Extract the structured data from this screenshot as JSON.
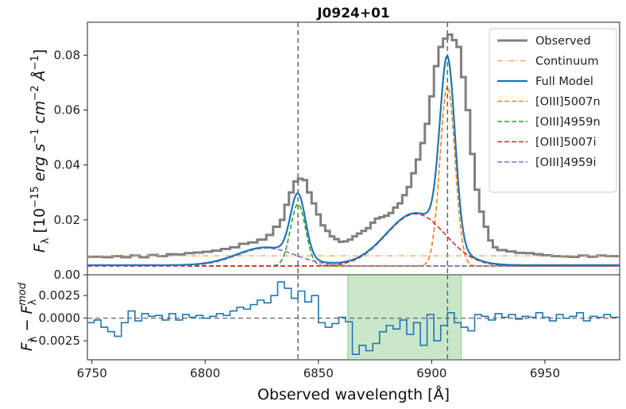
{
  "chart_data": {
    "type": "line",
    "title": "J0924+01",
    "xlabel": "Observed wavelength [Å]",
    "xlim": [
      6748,
      6983
    ],
    "xticks": [
      6750,
      6800,
      6850,
      6900,
      6950
    ],
    "top_panel": {
      "ylabel": "F_λ [10^-15 erg s^-1 cm^-2 Å^-1]",
      "ylim": [
        0.0,
        0.092
      ],
      "yticks": [
        "0.00",
        "0.02",
        "0.04",
        "0.06",
        "0.08"
      ],
      "yticks_values": [
        0.0,
        0.02,
        0.04,
        0.06,
        0.08
      ],
      "vlines": [
        6841,
        6907
      ],
      "legend_position": "upper-right",
      "observed_x": [
        6748,
        6751,
        6755,
        6759,
        6763,
        6767,
        6771,
        6775,
        6779,
        6783,
        6787,
        6791,
        6795,
        6799,
        6803,
        6807,
        6811,
        6815,
        6819,
        6823,
        6827,
        6830,
        6833,
        6835,
        6837,
        6839,
        6841,
        6843,
        6845,
        6847,
        6849,
        6851,
        6853,
        6855,
        6857,
        6859,
        6861,
        6863,
        6865,
        6867,
        6869,
        6871,
        6873,
        6875,
        6877,
        6879,
        6881,
        6883,
        6885,
        6887,
        6889,
        6891,
        6893,
        6895,
        6897,
        6899,
        6901,
        6903,
        6905,
        6907,
        6909,
        6911,
        6913,
        6915,
        6917,
        6919,
        6921,
        6923,
        6925,
        6927,
        6929,
        6933,
        6937,
        6941,
        6945,
        6949,
        6953,
        6957,
        6961,
        6965,
        6969,
        6973,
        6977,
        6983
      ],
      "observed_y": [
        0.0066,
        0.0066,
        0.0064,
        0.0068,
        0.0064,
        0.007,
        0.0064,
        0.0072,
        0.0068,
        0.0075,
        0.0074,
        0.0079,
        0.0081,
        0.0084,
        0.0088,
        0.0094,
        0.01,
        0.0113,
        0.0118,
        0.0128,
        0.0145,
        0.0175,
        0.02,
        0.0255,
        0.03,
        0.034,
        0.035,
        0.0345,
        0.03,
        0.026,
        0.022,
        0.018,
        0.016,
        0.014,
        0.013,
        0.012,
        0.0122,
        0.0128,
        0.014,
        0.015,
        0.016,
        0.017,
        0.019,
        0.0205,
        0.021,
        0.0215,
        0.0225,
        0.0245,
        0.026,
        0.029,
        0.032,
        0.037,
        0.042,
        0.048,
        0.055,
        0.065,
        0.076,
        0.083,
        0.086,
        0.0875,
        0.0855,
        0.083,
        0.072,
        0.06,
        0.044,
        0.031,
        0.023,
        0.0175,
        0.0125,
        0.01,
        0.009,
        0.0085,
        0.008,
        0.0079,
        0.0075,
        0.0071,
        0.0068,
        0.0067,
        0.0065,
        0.007,
        0.0066,
        0.007,
        0.0068,
        0.007
      ],
      "series": [
        {
          "name": "Observed",
          "color": "#7f7f7f",
          "style": "steps"
        },
        {
          "name": "Continuum",
          "color": "#e8a45e",
          "style": "dashdot",
          "value": 0.0069
        },
        {
          "name": "Full Model",
          "color": "#1f77b4",
          "style": "solid"
        },
        {
          "name": "[OIII]5007n",
          "color": "#ff7f0e",
          "style": "dashed",
          "amp": 0.0656,
          "center": 6907,
          "sigma": 3.3,
          "base": 0.0032
        },
        {
          "name": "[OIII]4959n",
          "color": "#2ca02c",
          "style": "dashed",
          "amp": 0.0226,
          "center": 6841,
          "sigma": 3.3,
          "base": 0.0032
        },
        {
          "name": "[OIII]5007i",
          "color": "#d62728",
          "style": "dashed",
          "amp": 0.019,
          "center": 6893,
          "sigma": 13,
          "base": 0.0032
        },
        {
          "name": "[OIII]4959i",
          "color": "#9467bd",
          "style": "dashed",
          "amp": 0.0065,
          "center": 6827,
          "sigma": 13,
          "base": 0.0032
        }
      ]
    },
    "bottom_panel": {
      "ylabel": "F_λ − F_λ^mod",
      "ylim": [
        -0.0046,
        0.0048
      ],
      "yticks": [
        "0.0025",
        "0.0000",
        "−0.0025"
      ],
      "yticks_values": [
        0.0025,
        0.0,
        -0.0025
      ],
      "shaded_region": [
        6863,
        6913
      ],
      "shade_color": "#2ca02c",
      "residual_x": [
        6748,
        6751,
        6754,
        6757,
        6760,
        6763,
        6766,
        6769,
        6772,
        6775,
        6778,
        6781,
        6784,
        6787,
        6790,
        6793,
        6796,
        6799,
        6802,
        6805,
        6808,
        6811,
        6814,
        6817,
        6820,
        6823,
        6826,
        6829,
        6832,
        6835,
        6838,
        6841,
        6844,
        6847,
        6850,
        6853,
        6856,
        6859,
        6862,
        6865,
        6868,
        6871,
        6874,
        6877,
        6880,
        6883,
        6886,
        6889,
        6892,
        6895,
        6898,
        6901,
        6904,
        6907,
        6910,
        6913,
        6916,
        6919,
        6922,
        6925,
        6928,
        6931,
        6934,
        6937,
        6940,
        6943,
        6946,
        6949,
        6952,
        6955,
        6958,
        6961,
        6964,
        6967,
        6970,
        6973,
        6976,
        6979,
        6983
      ],
      "residual_y": [
        -0.0005,
        -0.0002,
        -0.001,
        -0.0015,
        -0.002,
        -0.0005,
        0.0008,
        -0.0003,
        0.0005,
        0.0002,
        0.0003,
        -0.0002,
        0.0005,
        -0.0002,
        0.0004,
        0.0001,
        0.0003,
        0.0,
        0.0002,
        0.0005,
        0.0003,
        0.0008,
        0.0012,
        0.001,
        0.0015,
        0.002,
        0.0017,
        0.0025,
        0.004,
        0.0033,
        0.0022,
        0.003,
        0.0018,
        0.0025,
        -0.0005,
        -0.001,
        -0.0006,
        0.0001,
        -0.0004,
        -0.004,
        -0.003,
        -0.0036,
        -0.0028,
        -0.0015,
        -0.0008,
        -0.0012,
        -0.0002,
        -0.0018,
        -0.0005,
        -0.003,
        0.0004,
        -0.0025,
        -0.0008,
        0.0006,
        -0.0005,
        -0.001,
        -0.0014,
        0.0004,
        0.0002,
        -0.0002,
        0.0005,
        0.0001,
        0.0004,
        -0.0001,
        0.0002,
        0.0001,
        0.0006,
        0.0001,
        -0.0003,
        0.0004,
        0.0,
        0.0002,
        0.0006,
        -0.0003,
        0.0002,
        0.0001,
        0.0004,
        0.0001,
        0.0003
      ]
    }
  },
  "text": {
    "title": "J0924+01",
    "xlabel": "Observed wavelength [Å]",
    "xtick_labels": [
      "6750",
      "6800",
      "6850",
      "6900",
      "6950"
    ],
    "legend_labels": [
      "Observed",
      "Continuum",
      "Full Model",
      "[OIII]5007n",
      "[OIII]4959n",
      "[OIII]5007i",
      "[OIII]4959i"
    ]
  }
}
